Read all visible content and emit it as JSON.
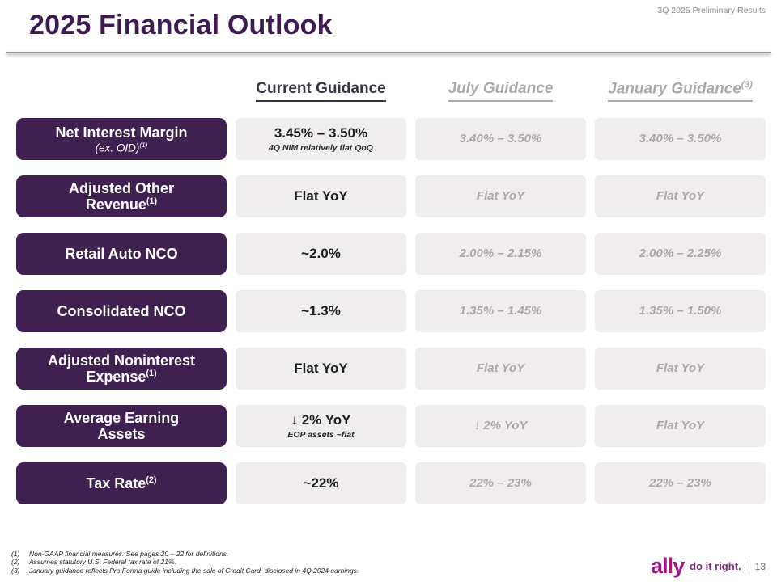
{
  "slide": {
    "eyebrow": "3Q 2025 Preliminary Results",
    "title": "2025 Financial Outlook"
  },
  "colors": {
    "title_purple": "#3E1A52",
    "row_label_bg": "#3F2051",
    "cell_bg": "#EFEDEE",
    "muted_text": "#ABA8A9",
    "ally_magenta": "#A0157F",
    "tagline_purple": "#7E2D86"
  },
  "table": {
    "headers": {
      "current": "Current Guidance",
      "july": "July Guidance",
      "january": "January Guidance",
      "january_sup": "(3)"
    },
    "rows": [
      {
        "label": "Net Interest Margin",
        "label_line2": "(ex. OID)",
        "label_line2_sup": "(1)",
        "current": "3.45% – 3.50%",
        "current_sub": "4Q NIM relatively flat QoQ",
        "july": "3.40% – 3.50%",
        "january": "3.40% – 3.50%"
      },
      {
        "label": "Adjusted Other Revenue",
        "label_sup": "(1)",
        "current": "Flat YoY",
        "july": "Flat YoY",
        "january": "Flat YoY"
      },
      {
        "label": "Retail Auto NCO",
        "current": "~2.0%",
        "july": "2.00% – 2.15%",
        "january": "2.00% – 2.25%"
      },
      {
        "label": "Consolidated NCO",
        "current": "~1.3%",
        "july": "1.35% – 1.45%",
        "january": "1.35% – 1.50%"
      },
      {
        "label": "Adjusted Noninterest Expense",
        "label_sup": "(1)",
        "current": "Flat YoY",
        "july": "Flat YoY",
        "january": "Flat YoY"
      },
      {
        "label": "Average Earning Assets",
        "current": "↓ 2% YoY",
        "current_sub": "EOP assets ~flat",
        "july": "↓ 2% YoY",
        "january": "Flat YoY"
      },
      {
        "label": "Tax Rate",
        "label_sup": "(2)",
        "current": "~22%",
        "july": "22% – 23%",
        "january": "22% – 23%"
      }
    ]
  },
  "footnotes": [
    {
      "num": "(1)",
      "text": "Non-GAAP financial measures. See pages 20 – 22 for definitions."
    },
    {
      "num": "(2)",
      "text": "Assumes statutory U.S. Federal tax rate of 21%."
    },
    {
      "num": "(3)",
      "text": "January guidance reflects Pro Forma guide including the sale of Credit Card, disclosed in 4Q 2024 earnings."
    }
  ],
  "footer": {
    "logo": "ally",
    "tagline": "do it right.",
    "page": "13"
  }
}
